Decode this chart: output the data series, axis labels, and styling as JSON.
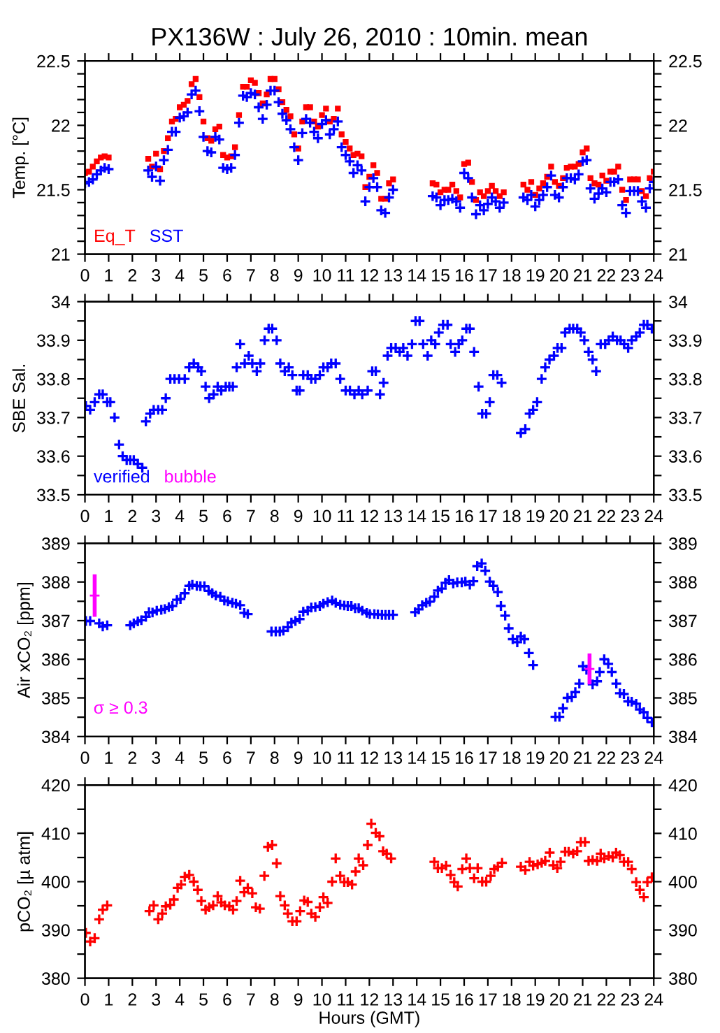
{
  "chart_data": [
    {
      "type": "scatter",
      "title": "PX136W : July 26, 2010 : 10min. mean",
      "ylabel": "Temp. [°C]",
      "legend": "bottom left",
      "xlim": [
        0,
        24
      ],
      "xticks": [
        0,
        1,
        2,
        3,
        4,
        5,
        6,
        7,
        8,
        9,
        10,
        11,
        12,
        13,
        14,
        15,
        16,
        17,
        18,
        19,
        20,
        21,
        22,
        23,
        24
      ],
      "ylim": [
        21,
        22.5
      ],
      "yticks": [
        21,
        {
          "value": 21.1,
          "label": null
        },
        {
          "value": 21.2,
          "label": null
        },
        {
          "value": 21.3,
          "label": null
        },
        {
          "value": 21.4,
          "label": null
        },
        21.5,
        {
          "value": 21.6,
          "label": null
        },
        {
          "value": 21.7,
          "label": null
        },
        {
          "value": 21.8,
          "label": null
        },
        {
          "value": 21.9,
          "label": null
        },
        22,
        {
          "value": 22.1,
          "label": null
        },
        {
          "value": 22.2,
          "label": null
        },
        {
          "value": 22.3,
          "label": null
        },
        {
          "value": 22.4,
          "label": null
        },
        22.5
      ],
      "y2lim": [
        21,
        22.5
      ],
      "y2ticks": [
        21,
        {
          "value": 21.1,
          "label": null
        },
        {
          "value": 21.2,
          "label": null
        },
        {
          "value": 21.3,
          "label": null
        },
        {
          "value": 21.4,
          "label": null
        },
        21.5,
        {
          "value": 21.6,
          "label": null
        },
        {
          "value": 21.7,
          "label": null
        },
        {
          "value": 21.8,
          "label": null
        },
        {
          "value": 21.9,
          "label": null
        },
        22,
        {
          "value": 22.1,
          "label": null
        },
        {
          "value": 22.2,
          "label": null
        },
        {
          "value": 22.3,
          "label": null
        },
        {
          "value": 22.4,
          "label": null
        },
        22.5
      ],
      "series": [
        {
          "name": "Eq_T",
          "marker": "square",
          "color": "#ff0000",
          "x": [
            0,
            0.17,
            0.33,
            0.5,
            0.67,
            0.83,
            1.0,
            2.67,
            2.83,
            3.0,
            3.17,
            3.33,
            3.5,
            3.67,
            3.83,
            4.0,
            4.17,
            4.33,
            4.5,
            4.67,
            4.83,
            5.0,
            5.17,
            5.33,
            5.5,
            5.67,
            5.83,
            6.0,
            6.17,
            6.33,
            6.5,
            6.67,
            6.83,
            7.0,
            7.17,
            7.33,
            7.5,
            7.67,
            7.83,
            8.0,
            8.17,
            8.33,
            8.5,
            8.67,
            8.83,
            9.0,
            9.17,
            9.33,
            9.5,
            9.67,
            9.83,
            10.0,
            10.17,
            10.33,
            10.5,
            10.67,
            10.83,
            11.0,
            11.17,
            11.33,
            11.5,
            11.67,
            11.83,
            12.0,
            12.17,
            12.33,
            12.5,
            12.67,
            12.83,
            13.0,
            14.67,
            14.83,
            15.0,
            15.17,
            15.33,
            15.5,
            15.67,
            15.83,
            16.0,
            16.17,
            16.33,
            16.5,
            16.67,
            16.83,
            17.0,
            17.17,
            17.33,
            17.5,
            17.67,
            18.5,
            18.67,
            18.83,
            19.0,
            19.17,
            19.33,
            19.5,
            19.67,
            19.83,
            20.0,
            20.17,
            20.33,
            20.5,
            20.67,
            20.83,
            21.0,
            21.17,
            21.33,
            21.5,
            21.67,
            21.83,
            22.0,
            22.17,
            22.33,
            22.5,
            22.67,
            22.83,
            23.0,
            23.17,
            23.33,
            23.5,
            23.67,
            23.83,
            24.0
          ],
          "values": [
            21.63,
            21.64,
            21.68,
            21.72,
            21.75,
            21.76,
            21.75,
            21.74,
            21.68,
            21.78,
            21.66,
            21.8,
            21.9,
            22.03,
            22.05,
            22.14,
            22.16,
            22.19,
            22.32,
            22.36,
            22.22,
            22.03,
            21.9,
            21.88,
            21.97,
            21.99,
            21.77,
            21.75,
            21.76,
            21.83,
            22.08,
            22.3,
            22.3,
            22.35,
            22.33,
            22.25,
            22.17,
            22.24,
            22.36,
            22.36,
            22.28,
            22.18,
            22.12,
            22.07,
            21.93,
            21.82,
            22.03,
            22.14,
            22.14,
            22.03,
            21.99,
            22.08,
            22.13,
            22.03,
            22.05,
            22.13,
            21.93,
            21.87,
            21.82,
            21.77,
            21.78,
            21.76,
            21.52,
            21.6,
            21.69,
            21.63,
            21.43,
            21.43,
            21.55,
            21.58,
            21.55,
            21.54,
            21.48,
            21.5,
            21.5,
            21.54,
            21.49,
            21.44,
            21.7,
            21.71,
            21.56,
            21.42,
            21.48,
            21.45,
            21.49,
            21.53,
            21.49,
            21.45,
            21.48,
            21.54,
            21.5,
            21.56,
            21.46,
            21.51,
            21.55,
            21.6,
            21.68,
            21.56,
            21.53,
            21.59,
            21.67,
            21.68,
            21.68,
            21.7,
            21.79,
            21.82,
            21.59,
            21.55,
            21.54,
            21.61,
            21.57,
            21.64,
            21.64,
            21.68,
            21.5,
            21.42,
            21.58,
            21.58,
            21.58,
            21.49,
            21.45,
            21.59,
            21.64
          ]
        },
        {
          "name": "SST",
          "marker": "cross",
          "color": "#0000ff",
          "x": [
            0,
            0.17,
            0.33,
            0.5,
            0.67,
            0.83,
            1.0,
            2.67,
            2.83,
            3.0,
            3.17,
            3.33,
            3.5,
            3.67,
            3.83,
            4.0,
            4.17,
            4.33,
            4.5,
            4.67,
            4.83,
            5.0,
            5.17,
            5.33,
            5.5,
            5.67,
            5.83,
            6.0,
            6.17,
            6.33,
            6.5,
            6.67,
            6.83,
            7.0,
            7.17,
            7.33,
            7.5,
            7.67,
            7.83,
            8.0,
            8.17,
            8.33,
            8.5,
            8.67,
            8.83,
            9.0,
            9.17,
            9.33,
            9.5,
            9.67,
            9.83,
            10.0,
            10.17,
            10.33,
            10.5,
            10.67,
            10.83,
            11.0,
            11.17,
            11.33,
            11.5,
            11.67,
            11.83,
            12.0,
            12.17,
            12.33,
            12.5,
            12.67,
            12.83,
            13.0,
            14.67,
            14.83,
            15.0,
            15.17,
            15.33,
            15.5,
            15.67,
            15.83,
            16.0,
            16.17,
            16.33,
            16.5,
            16.67,
            16.83,
            17.0,
            17.17,
            17.33,
            17.5,
            17.67,
            18.5,
            18.67,
            18.83,
            19.0,
            19.17,
            19.33,
            19.5,
            19.67,
            19.83,
            20.0,
            20.17,
            20.33,
            20.5,
            20.67,
            20.83,
            21.0,
            21.17,
            21.33,
            21.5,
            21.67,
            21.83,
            22.0,
            22.17,
            22.33,
            22.5,
            22.67,
            22.83,
            23.0,
            23.17,
            23.33,
            23.5,
            23.67,
            23.83,
            24.0
          ],
          "values": [
            21.55,
            21.56,
            21.58,
            21.62,
            21.65,
            21.67,
            21.66,
            21.65,
            21.6,
            21.68,
            21.57,
            21.73,
            21.81,
            21.95,
            21.95,
            22.06,
            22.07,
            22.1,
            22.24,
            22.27,
            22.11,
            21.91,
            21.8,
            21.79,
            21.91,
            21.89,
            21.67,
            21.66,
            21.67,
            21.77,
            22.02,
            22.23,
            22.22,
            22.25,
            22.24,
            22.14,
            22.05,
            22.16,
            22.27,
            22.27,
            22.18,
            22.09,
            22.04,
            21.97,
            21.83,
            21.73,
            21.94,
            22.05,
            22.02,
            21.95,
            21.9,
            22.01,
            22.04,
            21.93,
            21.97,
            22.03,
            21.83,
            21.77,
            21.72,
            21.63,
            21.69,
            21.65,
            21.41,
            21.52,
            21.59,
            21.52,
            21.34,
            21.32,
            21.44,
            21.5,
            21.45,
            21.44,
            21.38,
            21.42,
            21.42,
            21.43,
            21.41,
            21.36,
            21.63,
            21.59,
            21.44,
            21.31,
            21.38,
            21.34,
            21.39,
            21.44,
            21.41,
            21.36,
            21.4,
            21.44,
            21.42,
            21.46,
            21.37,
            21.42,
            21.46,
            21.52,
            21.61,
            21.46,
            21.44,
            21.52,
            21.59,
            21.59,
            21.58,
            21.62,
            21.72,
            21.73,
            21.51,
            21.43,
            21.47,
            21.51,
            21.48,
            21.56,
            21.56,
            21.58,
            21.38,
            21.32,
            21.49,
            21.49,
            21.49,
            21.41,
            21.36,
            21.51,
            21.56
          ]
        }
      ]
    },
    {
      "type": "scatter",
      "ylabel": "SBE Sal.",
      "legend": "bottom left",
      "xlim": [
        0,
        24
      ],
      "xticks": [
        0,
        1,
        2,
        3,
        4,
        5,
        6,
        7,
        8,
        9,
        10,
        11,
        12,
        13,
        14,
        15,
        16,
        17,
        18,
        19,
        20,
        21,
        22,
        23,
        24
      ],
      "ylim": [
        33.5,
        34
      ],
      "yticks": [
        33.5,
        {
          "value": 33.55,
          "label": null
        },
        33.6,
        {
          "value": 33.65,
          "label": null
        },
        33.7,
        {
          "value": 33.75,
          "label": null
        },
        33.8,
        {
          "value": 33.85,
          "label": null
        },
        33.9,
        {
          "value": 33.95,
          "label": null
        },
        34
      ],
      "y2lim": [
        33.5,
        34
      ],
      "y2ticks": [
        33.5,
        {
          "value": 33.55,
          "label": null
        },
        33.6,
        {
          "value": 33.65,
          "label": null
        },
        33.7,
        {
          "value": 33.75,
          "label": null
        },
        33.8,
        {
          "value": 33.85,
          "label": null
        },
        33.9,
        {
          "value": 33.95,
          "label": null
        },
        34
      ],
      "series": [
        {
          "name": "verified",
          "marker": "cross",
          "color": "#0000ff",
          "x": [
            0.04,
            0.22,
            0.41,
            0.6,
            0.75,
            0.94,
            1.07,
            1.25,
            1.44,
            1.59,
            1.76,
            1.91,
            2.06,
            2.23,
            2.42,
            2.57,
            2.75,
            2.9,
            3.09,
            3.26,
            3.41,
            3.6,
            3.78,
            3.97,
            4.21,
            4.4,
            4.59,
            4.78,
            4.91,
            5.09,
            5.24,
            5.43,
            5.6,
            5.75,
            5.94,
            6.09,
            6.24,
            6.4,
            6.55,
            6.74,
            6.91,
            7.06,
            7.25,
            7.4,
            7.58,
            7.75,
            7.9,
            8.09,
            8.24,
            8.43,
            8.6,
            8.75,
            8.93,
            9.06,
            9.21,
            9.4,
            9.55,
            9.72,
            9.91,
            10.06,
            10.24,
            10.39,
            10.58,
            10.77,
            11.0,
            11.18,
            11.37,
            11.55,
            11.7,
            11.93,
            12.12,
            12.27,
            12.45,
            12.6,
            12.77,
            12.92,
            13.11,
            13.28,
            13.43,
            13.61,
            13.8,
            13.95,
            14.12,
            14.27,
            14.46,
            14.61,
            14.78,
            14.93,
            15.11,
            15.3,
            15.43,
            15.62,
            15.77,
            15.92,
            16.09,
            16.24,
            16.42,
            16.61,
            16.76,
            16.93,
            17.08,
            17.23,
            17.4,
            17.58,
            18.39,
            18.58,
            18.76,
            18.91,
            19.08,
            19.27,
            19.42,
            19.6,
            19.79,
            19.94,
            20.11,
            20.26,
            20.45,
            20.6,
            20.77,
            20.92,
            21.07,
            21.25,
            21.42,
            21.57,
            21.76,
            21.95,
            22.1,
            22.27,
            22.45,
            22.6,
            22.75,
            22.92,
            23.07,
            23.26,
            23.41,
            23.58,
            23.73,
            23.92
          ],
          "values": [
            33.73,
            33.72,
            33.74,
            33.76,
            33.76,
            33.74,
            33.74,
            33.7,
            33.63,
            33.6,
            33.59,
            33.59,
            33.59,
            33.58,
            33.57,
            33.69,
            33.71,
            33.72,
            33.72,
            33.72,
            33.75,
            33.8,
            33.8,
            33.8,
            33.8,
            33.83,
            33.84,
            33.83,
            33.82,
            33.78,
            33.75,
            33.76,
            33.78,
            33.77,
            33.78,
            33.78,
            33.78,
            33.83,
            33.89,
            33.84,
            33.86,
            33.84,
            33.82,
            33.84,
            33.9,
            33.93,
            33.93,
            33.9,
            33.84,
            33.82,
            33.83,
            33.81,
            33.77,
            33.77,
            33.81,
            33.81,
            33.8,
            33.8,
            33.81,
            33.83,
            33.83,
            33.84,
            33.84,
            33.8,
            33.77,
            33.77,
            33.76,
            33.77,
            33.76,
            33.77,
            33.82,
            33.82,
            33.76,
            33.79,
            33.86,
            33.88,
            33.88,
            33.87,
            33.88,
            33.86,
            33.89,
            33.95,
            33.95,
            33.89,
            33.86,
            33.9,
            33.89,
            33.92,
            33.94,
            33.94,
            33.89,
            33.87,
            33.89,
            33.9,
            33.93,
            33.93,
            33.87,
            33.78,
            33.71,
            33.71,
            33.74,
            33.81,
            33.81,
            33.79,
            33.66,
            33.67,
            33.71,
            33.72,
            33.74,
            33.8,
            33.83,
            33.85,
            33.86,
            33.88,
            33.88,
            33.92,
            33.93,
            33.93,
            33.93,
            33.92,
            33.9,
            33.87,
            33.85,
            33.82,
            33.89,
            33.89,
            33.9,
            33.91,
            33.9,
            33.9,
            33.89,
            33.88,
            33.9,
            33.91,
            33.92,
            33.94,
            33.94,
            33.93
          ]
        },
        {
          "name": "bubble",
          "marker": "cross",
          "color": "#ff00ff"
        }
      ]
    },
    {
      "type": "scatter",
      "ylabel": "Air xCO₂ [ppm]",
      "annotations": [
        "σ ≥ 0.3"
      ],
      "xlim": [
        0,
        24
      ],
      "xticks": [
        0,
        1,
        2,
        3,
        4,
        5,
        6,
        7,
        8,
        9,
        10,
        11,
        12,
        13,
        14,
        15,
        16,
        17,
        18,
        19,
        20,
        21,
        22,
        23,
        24
      ],
      "ylim": [
        384,
        389
      ],
      "yticks": [
        384,
        {
          "value": 384.5,
          "label": null
        },
        385,
        {
          "value": 385.5,
          "label": null
        },
        386,
        {
          "value": 386.5,
          "label": null
        },
        387,
        {
          "value": 387.5,
          "label": null
        },
        388,
        {
          "value": 388.5,
          "label": null
        },
        389
      ],
      "y2lim": [
        384,
        389
      ],
      "y2ticks": [
        384,
        {
          "value": 384.5,
          "label": null
        },
        385,
        {
          "value": 385.5,
          "label": null
        },
        386,
        {
          "value": 386.5,
          "label": null
        },
        387,
        {
          "value": 387.5,
          "label": null
        },
        388,
        {
          "value": 388.5,
          "label": null
        },
        389
      ],
      "series": [
        {
          "marker": "cross",
          "color": "#0000ff",
          "x": [
            0.04,
            0.22,
            0.6,
            0.75,
            0.94,
            1.91,
            2.06,
            2.23,
            2.38,
            2.57,
            2.7,
            2.85,
            3.03,
            3.22,
            3.37,
            3.54,
            3.69,
            3.88,
            4.03,
            4.21,
            4.4,
            4.53,
            4.72,
            4.87,
            5.04,
            5.22,
            5.37,
            5.52,
            5.71,
            5.88,
            6.03,
            6.22,
            6.37,
            6.55,
            6.72,
            6.87,
            7.87,
            8.05,
            8.22,
            8.37,
            8.56,
            8.71,
            8.88,
            9.06,
            9.21,
            9.4,
            9.55,
            9.72,
            9.91,
            10.06,
            10.24,
            10.43,
            10.58,
            10.77,
            10.94,
            11.09,
            11.24,
            11.4,
            11.55,
            11.7,
            11.89,
            12.02,
            12.21,
            12.36,
            12.53,
            12.68,
            12.83,
            13.0,
            13.93,
            14.08,
            14.23,
            14.4,
            14.55,
            14.74,
            14.89,
            15.06,
            15.21,
            15.36,
            15.54,
            15.71,
            15.9,
            16.05,
            16.24,
            16.39,
            16.55,
            16.74,
            16.89,
            17.08,
            17.23,
            17.42,
            17.55,
            17.73,
            17.88,
            18.05,
            18.24,
            18.39,
            18.54,
            18.73,
            18.91,
            19.85,
            20.02,
            20.17,
            20.36,
            20.54,
            20.69,
            20.86,
            21.01,
            21.16,
            21.42,
            21.61,
            21.72,
            21.91,
            22.08,
            22.23,
            22.42,
            22.57,
            22.74,
            22.92,
            23.07,
            23.26,
            23.41,
            23.58,
            23.73,
            23.92
          ],
          "values": [
            386.99,
            386.99,
            386.93,
            386.85,
            386.88,
            386.88,
            386.93,
            386.98,
            387.01,
            387.1,
            387.22,
            387.21,
            387.26,
            387.28,
            387.3,
            387.35,
            387.38,
            387.54,
            387.56,
            387.71,
            387.9,
            387.93,
            387.9,
            387.89,
            387.89,
            387.77,
            387.71,
            387.65,
            387.62,
            387.52,
            387.5,
            387.46,
            387.44,
            387.4,
            387.2,
            387.17,
            386.72,
            386.72,
            386.72,
            386.74,
            386.83,
            386.95,
            386.99,
            387.04,
            387.23,
            387.26,
            387.34,
            387.35,
            387.38,
            387.44,
            387.48,
            387.52,
            387.46,
            387.41,
            387.39,
            387.38,
            387.38,
            387.32,
            387.32,
            387.26,
            387.2,
            387.17,
            387.17,
            387.16,
            387.15,
            387.15,
            387.15,
            387.15,
            387.22,
            387.29,
            387.4,
            387.46,
            387.49,
            387.62,
            387.78,
            387.83,
            387.98,
            388.05,
            387.96,
            387.99,
            387.99,
            388.01,
            387.93,
            388.02,
            388.41,
            388.48,
            388.29,
            388.01,
            387.9,
            387.74,
            387.38,
            387.13,
            386.8,
            386.52,
            386.44,
            386.59,
            386.52,
            386.16,
            385.85,
            384.51,
            384.51,
            384.73,
            385.0,
            385.02,
            385.15,
            385.37,
            385.82,
            385.73,
            385.35,
            385.43,
            385.67,
            386.0,
            385.88,
            385.67,
            385.37,
            385.12,
            385.1,
            384.91,
            384.9,
            384.85,
            384.7,
            384.63,
            384.48,
            384.37
          ]
        },
        {
          "marker": "cross",
          "color": "#ff00ff",
          "x": [
            0.41,
            21.29
          ],
          "values": [
            387.65,
            385.75
          ],
          "errors": [
            0.55,
            0.4
          ]
        }
      ]
    },
    {
      "type": "scatter",
      "ylabel": "pCO₂ [µ atm]",
      "xlabel": "Hours (GMT)",
      "xlim": [
        0,
        24
      ],
      "xticks": [
        0,
        1,
        2,
        3,
        4,
        5,
        6,
        7,
        8,
        9,
        10,
        11,
        12,
        13,
        14,
        15,
        16,
        17,
        18,
        19,
        20,
        21,
        22,
        23,
        24
      ],
      "ylim": [
        380,
        420
      ],
      "yticks": [
        380,
        {
          "value": 385,
          "label": null
        },
        390,
        {
          "value": 395,
          "label": null
        },
        400,
        {
          "value": 405,
          "label": null
        },
        410,
        {
          "value": 415,
          "label": null
        },
        420
      ],
      "y2lim": [
        380,
        420
      ],
      "y2ticks": [
        380,
        {
          "value": 385,
          "label": null
        },
        390,
        {
          "value": 395,
          "label": null
        },
        400,
        {
          "value": 405,
          "label": null
        },
        410,
        {
          "value": 415,
          "label": null
        },
        420
      ],
      "series": [
        {
          "marker": "cross",
          "color": "#ff0000",
          "x": [
            0.04,
            0.22,
            0.41,
            0.6,
            0.75,
            0.94,
            2.72,
            2.9,
            3.09,
            3.26,
            3.41,
            3.6,
            3.75,
            3.91,
            4.06,
            4.21,
            4.4,
            4.59,
            4.76,
            4.91,
            5.09,
            5.24,
            5.41,
            5.6,
            5.75,
            5.9,
            6.09,
            6.25,
            6.4,
            6.55,
            6.72,
            6.87,
            7.06,
            7.21,
            7.38,
            7.57,
            7.72,
            7.9,
            8.09,
            8.24,
            8.43,
            8.56,
            8.75,
            8.93,
            9.08,
            9.25,
            9.4,
            9.55,
            9.72,
            9.91,
            10.06,
            10.24,
            10.43,
            10.58,
            10.77,
            10.94,
            11.09,
            11.27,
            11.42,
            11.55,
            11.74,
            11.93,
            12.08,
            12.27,
            12.43,
            12.58,
            12.73,
            12.92,
            14.74,
            14.89,
            15.06,
            15.24,
            15.43,
            15.58,
            15.73,
            15.92,
            16.09,
            16.24,
            16.42,
            16.57,
            16.76,
            16.93,
            17.12,
            17.27,
            17.42,
            17.6,
            18.39,
            18.58,
            18.76,
            18.91,
            19.1,
            19.27,
            19.42,
            19.61,
            19.76,
            19.93,
            20.07,
            20.26,
            20.41,
            20.6,
            20.77,
            20.92,
            21.1,
            21.25,
            21.42,
            21.61,
            21.76,
            21.91,
            22.1,
            22.27,
            22.41,
            22.57,
            22.74,
            22.92,
            23.07,
            23.26,
            23.41,
            23.58,
            23.73,
            23.92
          ],
          "values": [
            389.4,
            387.6,
            388.3,
            392.2,
            394.2,
            395.1,
            393.9,
            395.1,
            392.2,
            393.4,
            394.9,
            395.2,
            396.3,
            398.7,
            399.4,
            401.0,
            401.4,
            400.0,
            398.3,
            396.0,
            394.2,
            394.7,
            395.1,
            397.0,
            395.7,
            395.1,
            394.9,
            394.2,
            396.0,
            400.2,
            397.8,
            398.7,
            397.6,
            394.7,
            394.4,
            401.2,
            407.2,
            407.6,
            403.8,
            397.0,
            395.1,
            393.4,
            391.8,
            391.8,
            393.9,
            396.1,
            395.8,
            393.4,
            392.7,
            394.7,
            396.8,
            395.6,
            400.0,
            404.8,
            401.2,
            399.9,
            399.9,
            399.4,
            402.1,
            404.8,
            403.4,
            407.6,
            412.0,
            410.1,
            409.4,
            406.3,
            405.8,
            404.8,
            404.1,
            402.8,
            402.8,
            403.3,
            401.4,
            399.9,
            399.0,
            402.6,
            404.8,
            402.8,
            400.7,
            402.8,
            400.0,
            400.0,
            401.2,
            402.6,
            403.1,
            403.9,
            403.1,
            402.4,
            404.1,
            403.3,
            403.6,
            403.9,
            404.3,
            406.0,
            403.4,
            402.8,
            404.1,
            406.2,
            406.2,
            405.8,
            406.3,
            408.2,
            408.2,
            404.3,
            404.5,
            404.3,
            405.8,
            404.8,
            405.3,
            405.0,
            406.0,
            405.5,
            404.1,
            404.1,
            402.6,
            399.9,
            398.3,
            396.8,
            399.9,
            400.9
          ]
        }
      ]
    }
  ]
}
